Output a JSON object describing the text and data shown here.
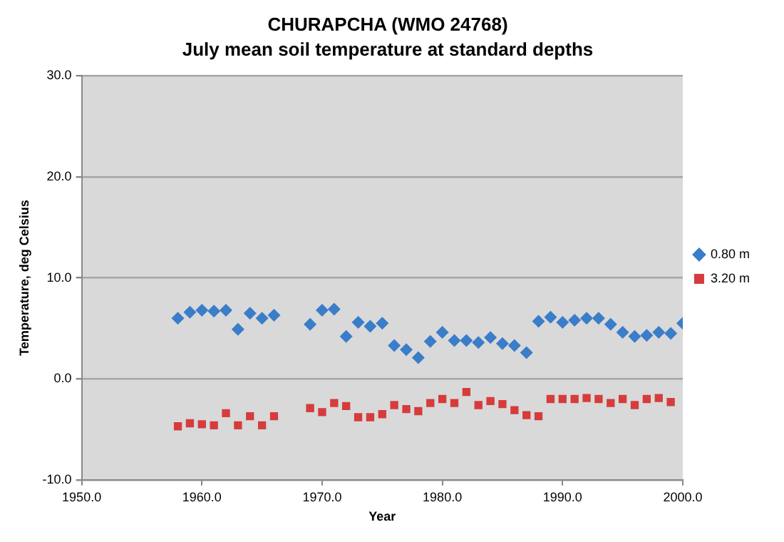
{
  "chart_data": {
    "type": "scatter",
    "title": "CHURAPCHA (WMO 24768)",
    "subtitle": "July mean soil temperature at standard depths",
    "xlabel": "Year",
    "ylabel": "Temperature, deg Celsius",
    "xlim": [
      1950,
      2000
    ],
    "xticks": [
      {
        "value": 1950,
        "label": "1950.0"
      },
      {
        "value": 1960,
        "label": "1960.0"
      },
      {
        "value": 1970,
        "label": "1970.0"
      },
      {
        "value": 1980,
        "label": "1980.0"
      },
      {
        "value": 1990,
        "label": "1990.0"
      },
      {
        "value": 2000,
        "label": "2000.0"
      }
    ],
    "ylim": [
      -10,
      30
    ],
    "yticks": [
      {
        "value": -10,
        "label": "-10.0"
      },
      {
        "value": 0,
        "label": "0.0"
      },
      {
        "value": 10,
        "label": "10.0"
      },
      {
        "value": 20,
        "label": "20.0"
      },
      {
        "value": 30,
        "label": "30.0"
      }
    ],
    "grid": "y",
    "legend": "right",
    "series": [
      {
        "name": "0.80 m",
        "color": "#3a7dc9",
        "marker": "diamond",
        "x": [
          1958,
          1959,
          1960,
          1961,
          1962,
          1963,
          1964,
          1965,
          1966,
          1969,
          1970,
          1971,
          1972,
          1973,
          1974,
          1975,
          1976,
          1977,
          1978,
          1979,
          1980,
          1981,
          1982,
          1983,
          1984,
          1985,
          1986,
          1987,
          1988,
          1989,
          1990,
          1991,
          1992,
          1993,
          1994,
          1995,
          1996,
          1997,
          1998,
          1999,
          2000
        ],
        "values": [
          6.0,
          6.6,
          6.8,
          6.7,
          6.8,
          4.9,
          6.5,
          6.0,
          6.3,
          5.4,
          6.8,
          6.9,
          4.2,
          5.6,
          5.2,
          5.5,
          3.3,
          2.9,
          2.1,
          3.7,
          4.6,
          3.8,
          3.8,
          3.6,
          4.1,
          3.5,
          3.3,
          2.6,
          5.7,
          6.1,
          5.6,
          5.8,
          6.0,
          6.0,
          5.4,
          4.6,
          4.2,
          4.3,
          4.6,
          4.5,
          5.5
        ]
      },
      {
        "name": "3.20 m",
        "color": "#d63c3c",
        "marker": "square",
        "x": [
          1958,
          1959,
          1960,
          1961,
          1962,
          1963,
          1964,
          1965,
          1966,
          1969,
          1970,
          1971,
          1972,
          1973,
          1974,
          1975,
          1976,
          1977,
          1978,
          1979,
          1980,
          1981,
          1982,
          1983,
          1984,
          1985,
          1986,
          1987,
          1988,
          1989,
          1990,
          1991,
          1992,
          1993,
          1994,
          1995,
          1996,
          1997,
          1998,
          1999
        ],
        "values": [
          -4.7,
          -4.4,
          -4.5,
          -4.6,
          -3.4,
          -4.6,
          -3.7,
          -4.6,
          -3.7,
          -2.9,
          -3.3,
          -2.4,
          -2.7,
          -3.8,
          -3.8,
          -3.5,
          -2.6,
          -3.0,
          -3.2,
          -2.4,
          -2.0,
          -2.4,
          -1.3,
          -2.6,
          -2.2,
          -2.5,
          -3.1,
          -3.6,
          -3.7,
          -2.0,
          -2.0,
          -2.0,
          -1.9,
          -2.0,
          -2.4,
          -2.0,
          -2.6,
          -2.0,
          -1.9,
          -2.3
        ]
      }
    ]
  }
}
